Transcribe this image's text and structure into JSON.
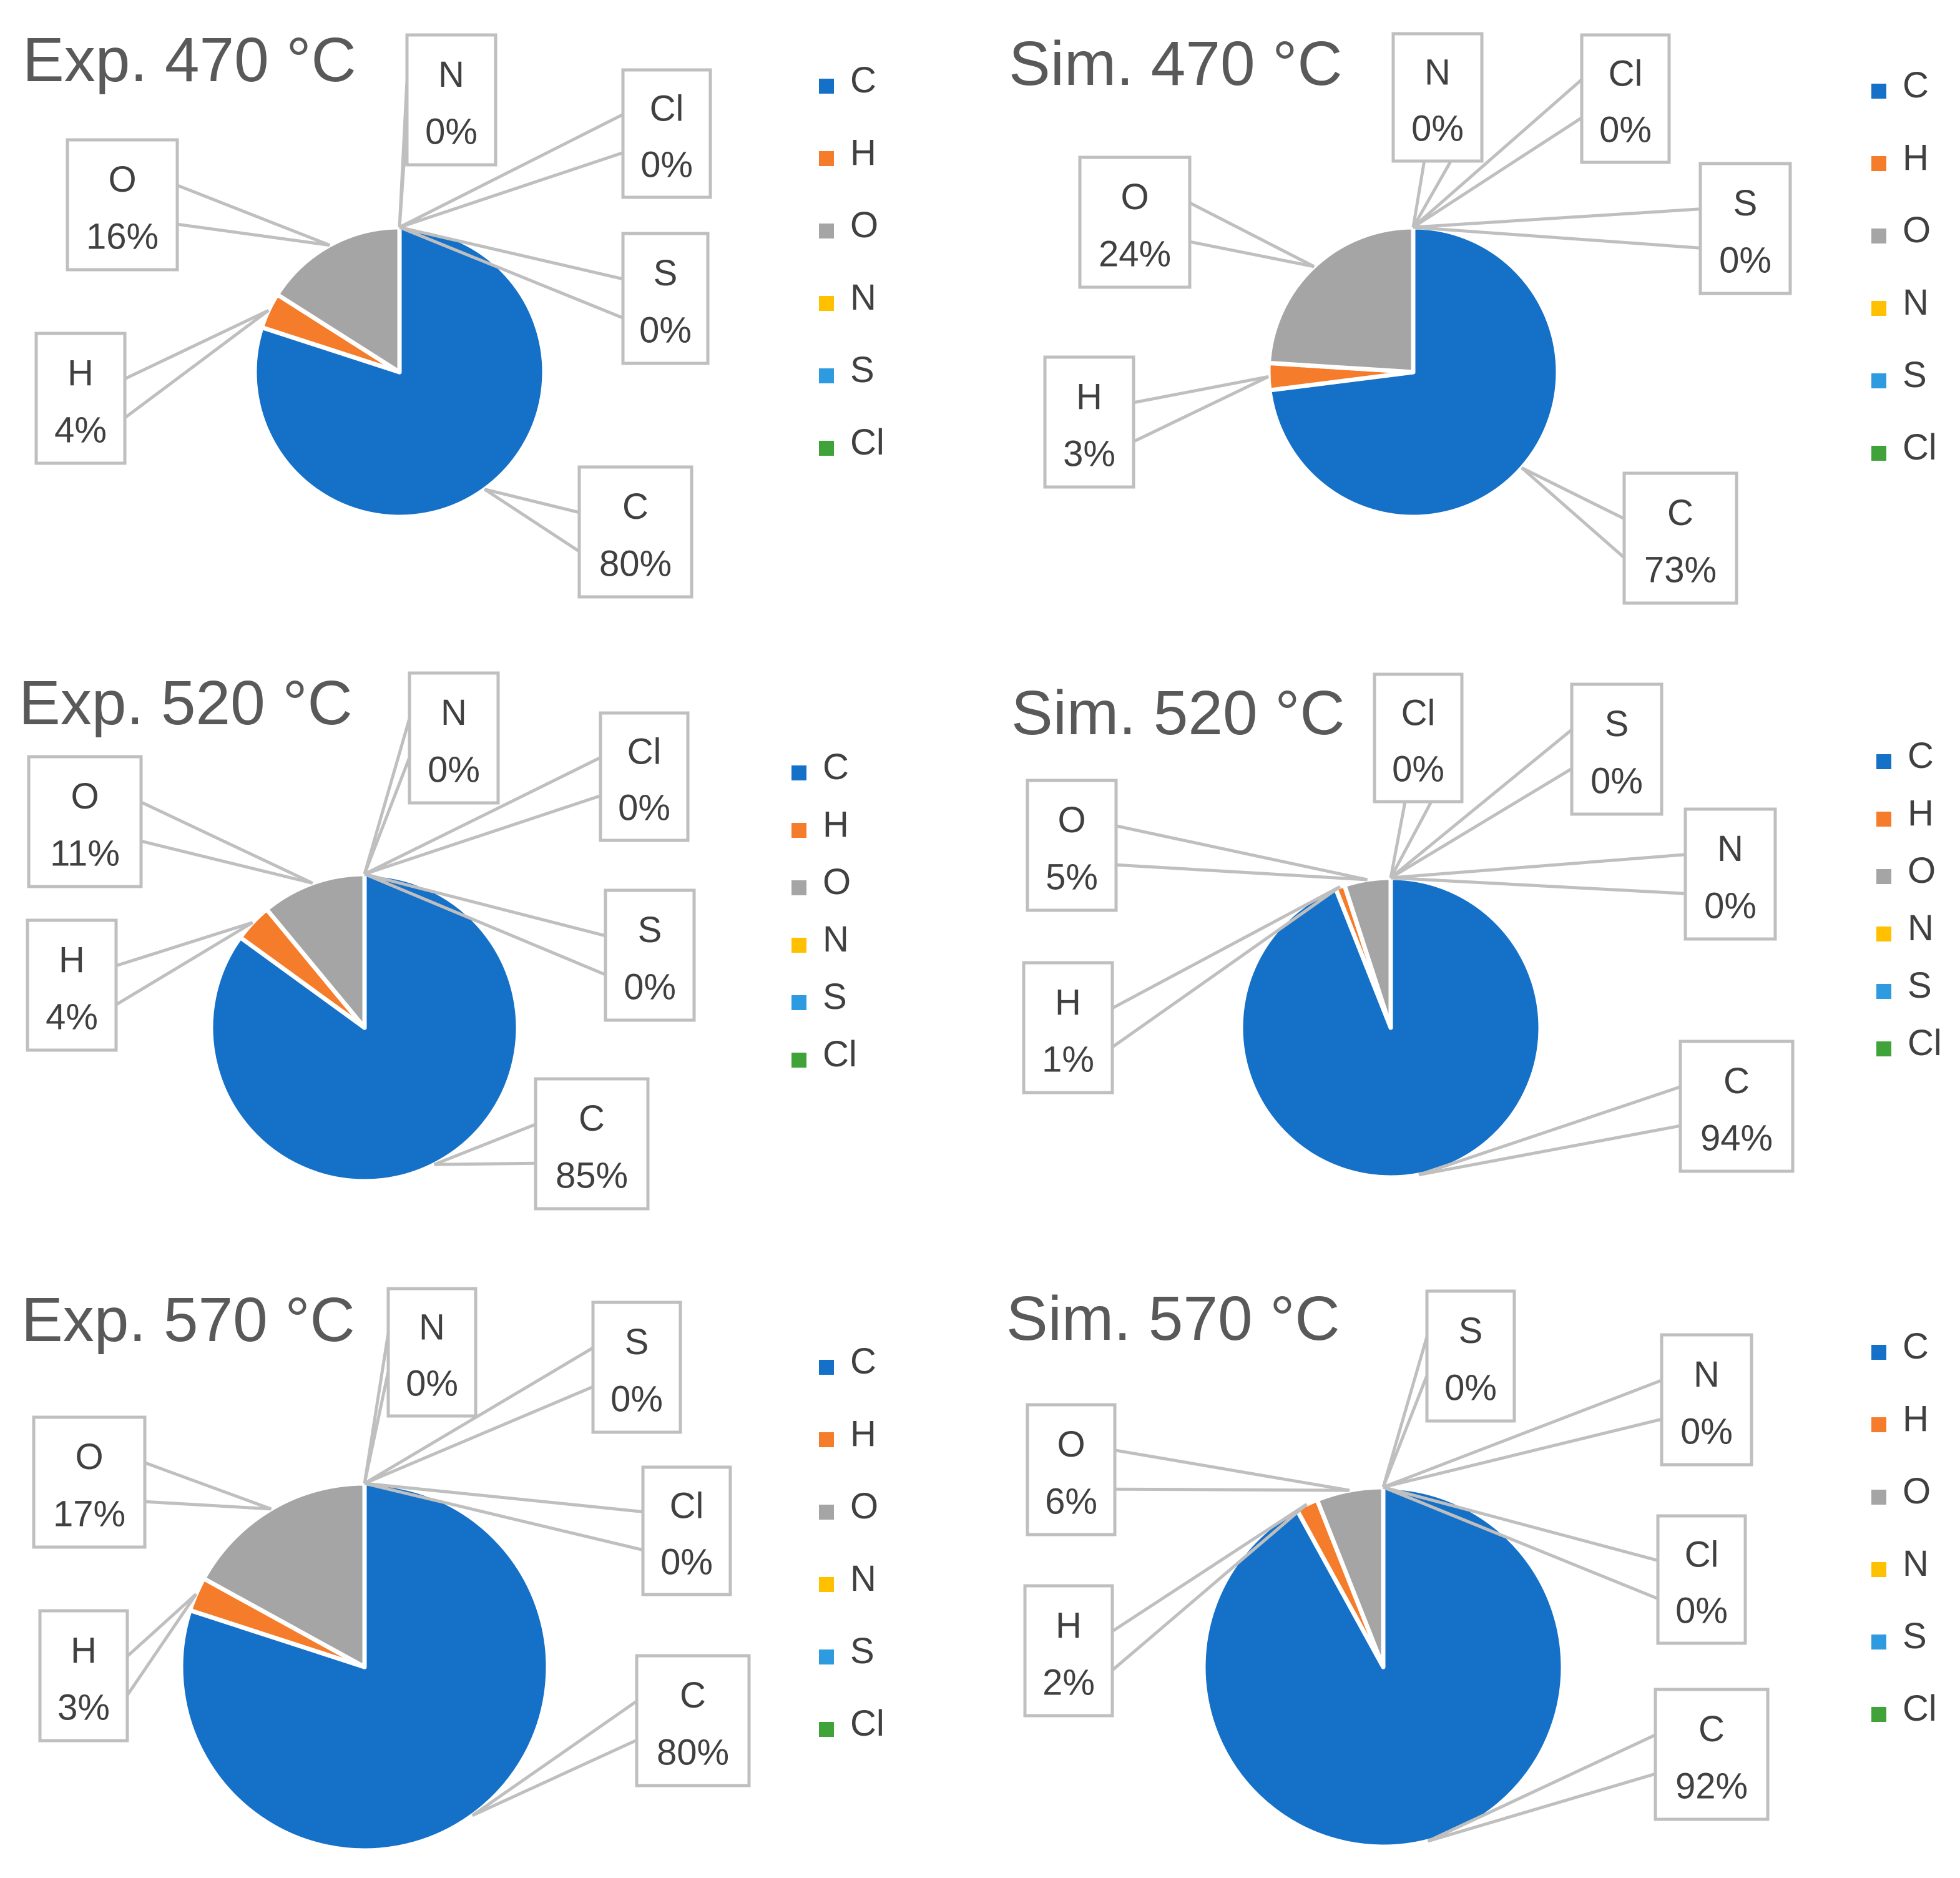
{
  "colors": {
    "C": "#1570c8",
    "H": "#f57c2a",
    "O": "#a5a5a5",
    "N": "#ffc000",
    "S": "#2e9be0",
    "Cl": "#3fa33a"
  },
  "chart_data": [
    {
      "type": "pie",
      "title": "Exp. 470 °C",
      "labels": [
        "C",
        "H",
        "O",
        "N",
        "S",
        "Cl"
      ],
      "values": [
        80,
        4,
        16,
        0,
        0,
        0
      ],
      "data_labels": [
        "80%",
        "4%",
        "16%",
        "0%",
        "0%",
        "0%"
      ],
      "legend_position": "right"
    },
    {
      "type": "pie",
      "title": "Sim. 470 °C",
      "labels": [
        "C",
        "H",
        "O",
        "N",
        "S",
        "Cl"
      ],
      "values": [
        73,
        3,
        24,
        0,
        0,
        0
      ],
      "data_labels": [
        "73%",
        "3%",
        "24%",
        "0%",
        "0%",
        "0%"
      ],
      "legend_position": "right"
    },
    {
      "type": "pie",
      "title": "Exp. 520 °C",
      "labels": [
        "C",
        "H",
        "O",
        "N",
        "S",
        "Cl"
      ],
      "values": [
        85,
        4,
        11,
        0,
        0,
        0
      ],
      "data_labels": [
        "85%",
        "4%",
        "11%",
        "0%",
        "0%",
        "0%"
      ],
      "legend_position": "right"
    },
    {
      "type": "pie",
      "title": "Sim. 520 °C",
      "labels": [
        "C",
        "H",
        "O",
        "N",
        "S",
        "Cl"
      ],
      "values": [
        94,
        1,
        5,
        0,
        0,
        0
      ],
      "data_labels": [
        "94%",
        "1%",
        "5%",
        "0%",
        "0%",
        "0%"
      ],
      "legend_position": "right"
    },
    {
      "type": "pie",
      "title": "Exp. 570 °C",
      "labels": [
        "C",
        "H",
        "O",
        "N",
        "S",
        "Cl"
      ],
      "values": [
        80,
        3,
        17,
        0,
        0,
        0
      ],
      "data_labels": [
        "80%",
        "3%",
        "17%",
        "0%",
        "0%",
        "0%"
      ],
      "legend_position": "right"
    },
    {
      "type": "pie",
      "title": "Sim. 570 °C",
      "labels": [
        "C",
        "H",
        "O",
        "N",
        "S",
        "Cl"
      ],
      "values": [
        92,
        2,
        6,
        0,
        0,
        0
      ],
      "data_labels": [
        "92%",
        "2%",
        "6%",
        "0%",
        "0%",
        "0%"
      ],
      "legend_position": "right"
    }
  ]
}
